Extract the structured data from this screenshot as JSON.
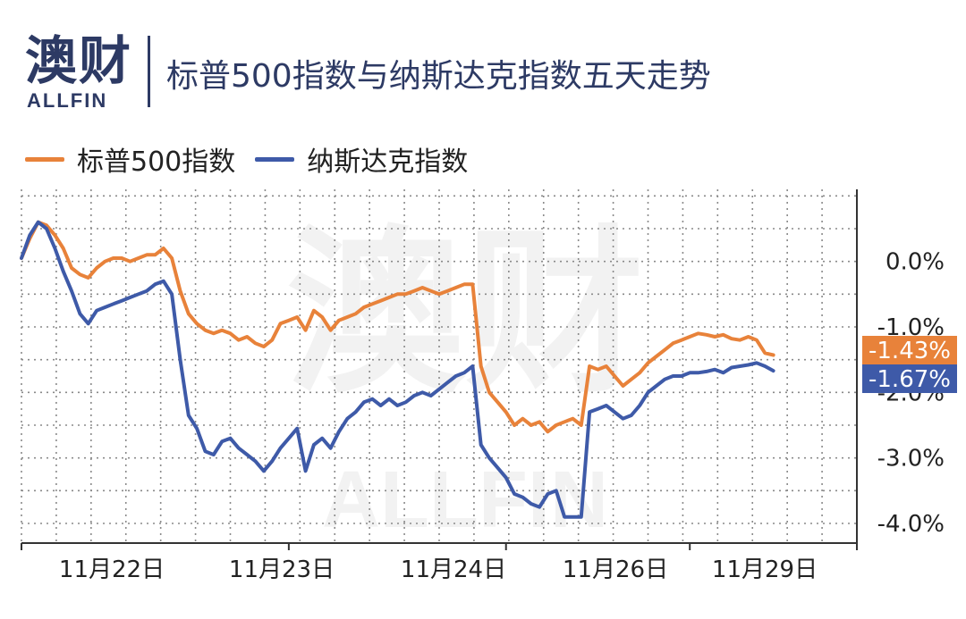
{
  "logo": {
    "cn": "澳财",
    "en": "ALLFIN"
  },
  "watermark": {
    "cn": "澳财",
    "en": "ALLFIN"
  },
  "title": "标普500指数与纳斯达克指数五天走势",
  "colors": {
    "sp500": "#e8823a",
    "nasdaq": "#3e5aa8",
    "title": "#2d3a64"
  },
  "chart_data": {
    "type": "line",
    "title": "标普500指数与纳斯达克指数五天走势",
    "xlabel": "",
    "ylabel": "",
    "x_tick_labels": [
      "11月22日",
      "11月23日",
      "11月24日",
      "11月26日",
      "11月29日"
    ],
    "x": [
      0,
      0.25,
      0.5,
      0.75,
      1,
      1.25,
      1.5,
      1.75,
      2,
      2.25,
      2.5,
      2.75,
      3,
      3.25,
      3.5,
      3.75,
      4,
      4.25,
      4.5,
      4.75,
      5,
      5.25,
      5.5,
      5.75,
      6,
      6.25,
      6.5,
      6.75,
      7,
      7.25,
      7.5,
      7.75,
      8,
      8.25,
      8.5,
      8.75,
      9,
      9.25,
      9.5,
      9.75,
      10,
      10.25,
      10.5,
      10.75,
      11,
      11.25,
      11.5,
      11.75,
      12,
      12.25,
      12.5,
      12.75,
      13,
      13.25,
      13.5,
      13.75,
      14,
      14.25,
      14.5,
      14.75,
      15,
      15.25,
      15.5,
      15.75,
      16,
      16.25,
      16.5,
      16.75,
      17,
      17.25,
      17.5,
      17.75,
      18,
      18.25,
      18.5,
      18.75,
      19,
      19.25,
      19.5,
      19.75,
      20,
      20.25,
      20.5,
      20.75,
      21,
      21.25,
      21.5,
      21.75,
      22,
      22.25,
      22.5,
      22.75,
      23,
      23.25,
      23.5,
      23.75,
      24,
      24.25,
      24.5,
      24.75,
      25
    ],
    "y_ticks": [
      0.0,
      -1.0,
      -2.0,
      -3.0,
      -4.0
    ],
    "y_tick_labels": [
      "0.0%",
      "-1.0%",
      "-2.0%",
      "-3.0%",
      "-4.0%"
    ],
    "ylim": [
      -4.3,
      1.1
    ],
    "grid": true,
    "legend_position": "top-left",
    "series": [
      {
        "name": "标普500指数",
        "color": "#e8823a",
        "end_label": "-1.43%",
        "values": [
          0.05,
          0.35,
          0.6,
          0.55,
          0.4,
          0.2,
          -0.1,
          -0.2,
          -0.25,
          -0.1,
          0.0,
          0.05,
          0.05,
          0.0,
          0.05,
          0.1,
          0.1,
          0.2,
          0.05,
          -0.45,
          -0.8,
          -0.95,
          -1.05,
          -1.1,
          -1.05,
          -1.1,
          -1.2,
          -1.15,
          -1.25,
          -1.3,
          -1.2,
          -0.95,
          -0.9,
          -0.85,
          -1.05,
          -0.75,
          -0.85,
          -1.05,
          -0.9,
          -0.85,
          -0.8,
          -0.7,
          -0.65,
          -0.6,
          -0.55,
          -0.5,
          -0.5,
          -0.45,
          -0.4,
          -0.45,
          -0.5,
          -0.45,
          -0.4,
          -0.35,
          -0.35,
          -1.6,
          -2.0,
          -2.15,
          -2.3,
          -2.5,
          -2.4,
          -2.5,
          -2.45,
          -2.6,
          -2.5,
          -2.45,
          -2.4,
          -2.5,
          -1.6,
          -1.65,
          -1.6,
          -1.75,
          -1.9,
          -1.8,
          -1.7,
          -1.55,
          -1.45,
          -1.35,
          -1.25,
          -1.2,
          -1.15,
          -1.1,
          -1.12,
          -1.15,
          -1.12,
          -1.18,
          -1.2,
          -1.15,
          -1.2,
          -1.4,
          -1.43,
          -1.43,
          -1.43,
          -1.43,
          -1.43,
          -1.43,
          -1.43,
          -1.43,
          -1.43,
          -1.43,
          -1.43
        ],
        "visible_points": 91
      },
      {
        "name": "纳斯达克指数",
        "color": "#3e5aa8",
        "end_label": "-1.67%",
        "values": [
          0.05,
          0.4,
          0.6,
          0.5,
          0.2,
          -0.15,
          -0.45,
          -0.8,
          -0.95,
          -0.75,
          -0.7,
          -0.65,
          -0.6,
          -0.55,
          -0.5,
          -0.45,
          -0.35,
          -0.3,
          -0.5,
          -1.5,
          -2.35,
          -2.55,
          -2.9,
          -2.95,
          -2.75,
          -2.7,
          -2.85,
          -2.95,
          -3.05,
          -3.2,
          -3.05,
          -2.85,
          -2.7,
          -2.55,
          -3.2,
          -2.8,
          -2.7,
          -2.85,
          -2.6,
          -2.4,
          -2.3,
          -2.15,
          -2.1,
          -2.2,
          -2.1,
          -2.2,
          -2.15,
          -2.05,
          -2.0,
          -2.05,
          -1.95,
          -1.85,
          -1.75,
          -1.7,
          -1.6,
          -2.8,
          -3.0,
          -3.15,
          -3.3,
          -3.55,
          -3.6,
          -3.7,
          -3.75,
          -3.55,
          -3.5,
          -3.9,
          -3.9,
          -3.9,
          -2.3,
          -2.25,
          -2.2,
          -2.3,
          -2.4,
          -2.35,
          -2.2,
          -2.0,
          -1.9,
          -1.8,
          -1.75,
          -1.75,
          -1.7,
          -1.7,
          -1.68,
          -1.65,
          -1.7,
          -1.62,
          -1.6,
          -1.58,
          -1.55,
          -1.6,
          -1.67,
          -1.67,
          -1.67,
          -1.67,
          -1.67,
          -1.67,
          -1.67,
          -1.67,
          -1.67,
          -1.67,
          -1.67
        ],
        "visible_points": 91
      }
    ]
  }
}
